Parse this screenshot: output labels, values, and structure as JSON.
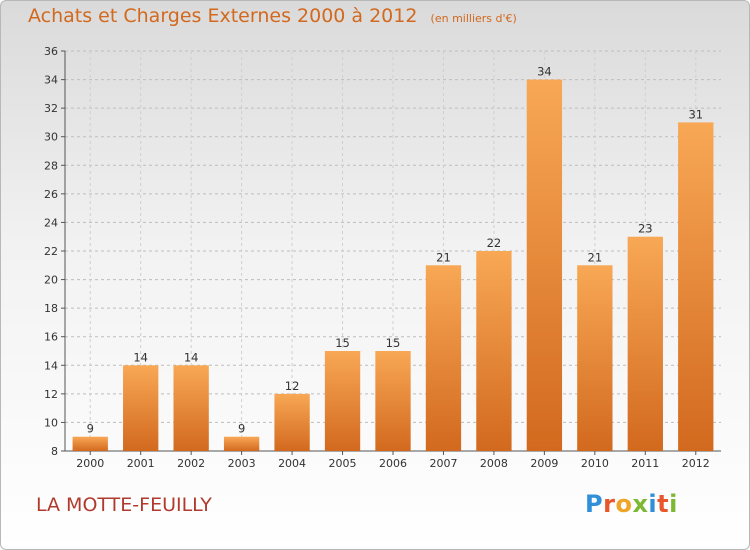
{
  "title": "Achats et Charges Externes 2000 à 2012",
  "unit": "(en milliers d'€)",
  "commune": "LA MOTTE-FEUILLY",
  "logo": {
    "text": "Proxiti",
    "letter_colors": [
      "#2f8fd8",
      "#e8572c",
      "#f0a526",
      "#7cb832",
      "#2f8fd8",
      "#e8572c",
      "#7cb832"
    ]
  },
  "colors": {
    "bar_light": "#f8a855",
    "bar_dark": "#d2691e",
    "title": "#d2691e",
    "commune": "#b03a2e"
  },
  "chart_data": {
    "type": "bar",
    "categories": [
      "2000",
      "2001",
      "2002",
      "2003",
      "2004",
      "2005",
      "2006",
      "2007",
      "2008",
      "2009",
      "2010",
      "2011",
      "2012"
    ],
    "values": [
      9,
      14,
      14,
      9,
      12,
      15,
      15,
      21,
      22,
      34,
      21,
      23,
      31
    ],
    "ylim": [
      8,
      36
    ],
    "yticks": [
      8,
      10,
      12,
      14,
      16,
      18,
      20,
      22,
      24,
      26,
      28,
      30,
      32,
      34,
      36
    ],
    "grid": true,
    "data_labels": true
  }
}
